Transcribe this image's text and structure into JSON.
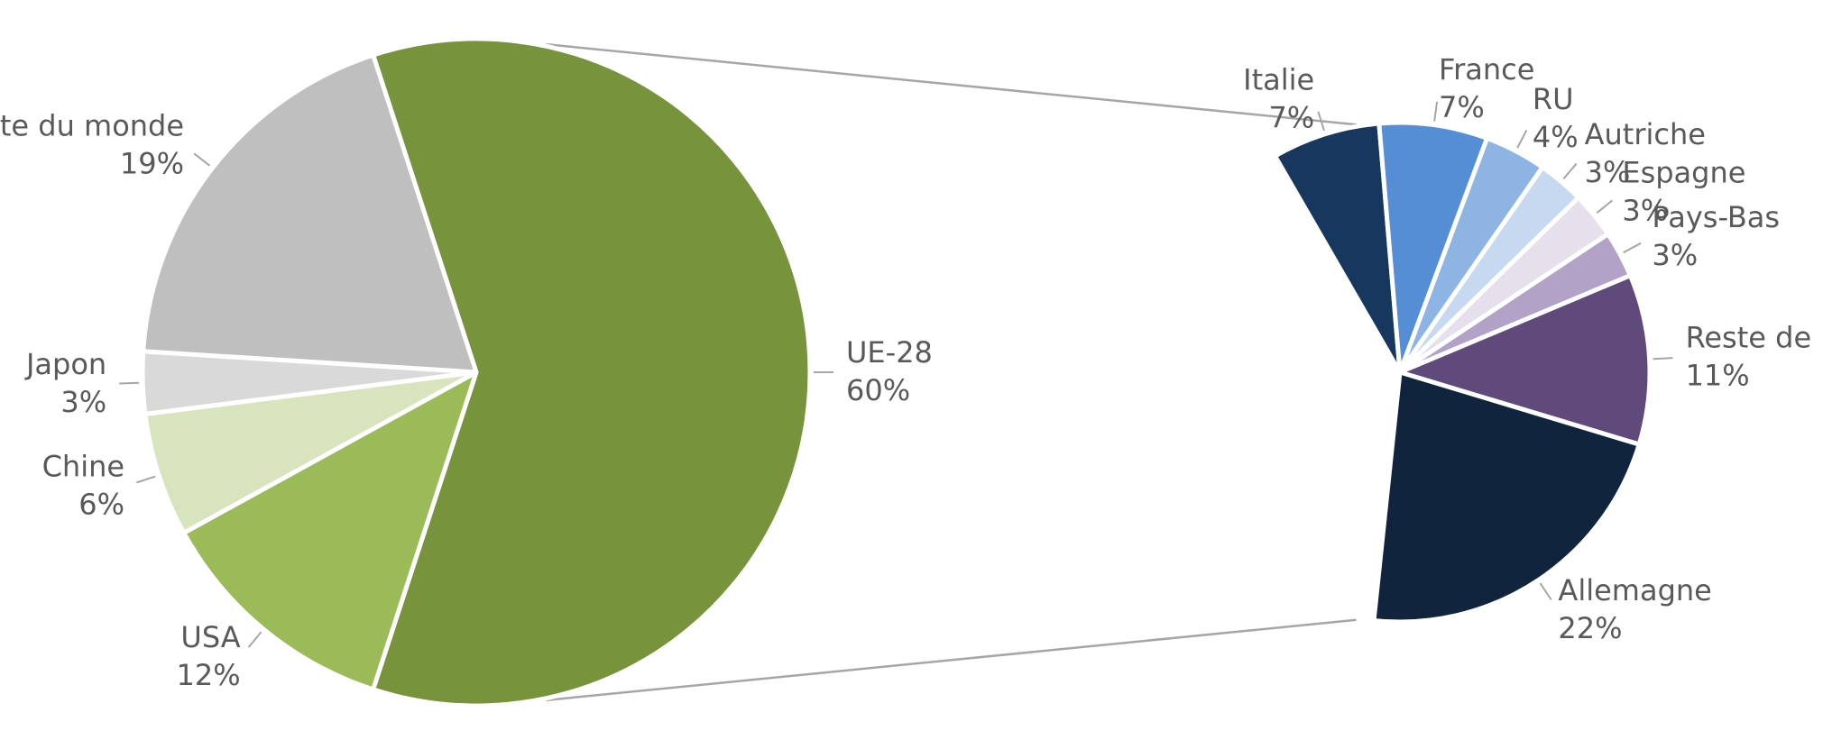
{
  "chart_data": [
    {
      "type": "pie",
      "categories": [
        "UE-28",
        "USA",
        "Chine",
        "Japon",
        "Reste du monde"
      ],
      "values": [
        60,
        12,
        6,
        3,
        19
      ],
      "value_labels": [
        "60%",
        "12%",
        "6%",
        "3%",
        "19%"
      ],
      "colors": [
        "#77933c",
        "#9bbb59",
        "#d7e4bd",
        "#d9d9d9",
        "#bfbfbf"
      ]
    },
    {
      "type": "pie",
      "categories": [
        "Italie",
        "France",
        "RU",
        "Autriche",
        "Espagne",
        "Pays-Bas",
        "Reste de l'UE",
        "Allemagne"
      ],
      "values": [
        7,
        7,
        4,
        3,
        3,
        3,
        11,
        22
      ],
      "value_labels": [
        "7%",
        "7%",
        "4%",
        "3%",
        "3%",
        "3%",
        "11%",
        "22%"
      ],
      "colors": [
        "#17375e",
        "#558ed5",
        "#8eb4e3",
        "#c6d9f1",
        "#e6e0ec",
        "#b3a2c7",
        "#604a7b",
        "#10243e"
      ]
    }
  ]
}
